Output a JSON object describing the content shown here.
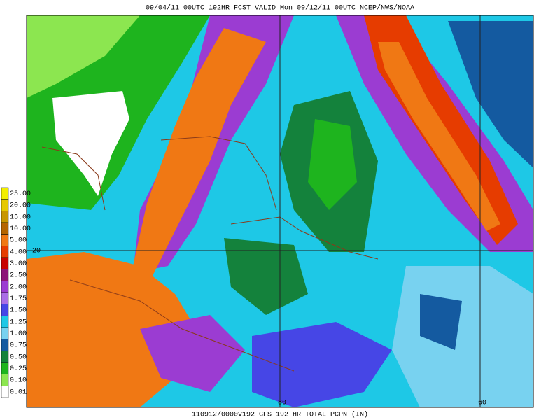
{
  "header": {
    "title": "09/04/11 00UTC  192HR  FCST VALID Mon 09/12/11 00UTC  NCEP/NWS/NOAA"
  },
  "footer": {
    "caption": "110912/0000V192 GFS 192-HR TOTAL PCPN (IN)"
  },
  "legend": {
    "items": [
      {
        "label": "25.00",
        "color": "#f2ee00"
      },
      {
        "label": "20.00",
        "color": "#e6c800"
      },
      {
        "label": "15.00",
        "color": "#c89600"
      },
      {
        "label": "10.00",
        "color": "#b46400"
      },
      {
        "label": "5.00",
        "color": "#f07814"
      },
      {
        "label": "4.00",
        "color": "#e63c00"
      },
      {
        "label": "3.00",
        "color": "#c80000"
      },
      {
        "label": "2.50",
        "color": "#8c1478"
      },
      {
        "label": "2.00",
        "color": "#9b3cd2"
      },
      {
        "label": "1.75",
        "color": "#aa6ee6"
      },
      {
        "label": "1.50",
        "color": "#4646e6"
      },
      {
        "label": "1.25",
        "color": "#1ec8e6"
      },
      {
        "label": "1.00",
        "color": "#78d2f0"
      },
      {
        "label": "0.75",
        "color": "#145aa0"
      },
      {
        "label": "0.50",
        "color": "#14823c"
      },
      {
        "label": "0.25",
        "color": "#1eb41e"
      },
      {
        "label": "0.10",
        "color": "#8ce650"
      },
      {
        "label": "0.01",
        "color": "#ffffff"
      }
    ]
  },
  "map": {
    "latitude_labels": [
      "20"
    ],
    "longitude_labels": [
      "-80",
      "-60"
    ]
  }
}
